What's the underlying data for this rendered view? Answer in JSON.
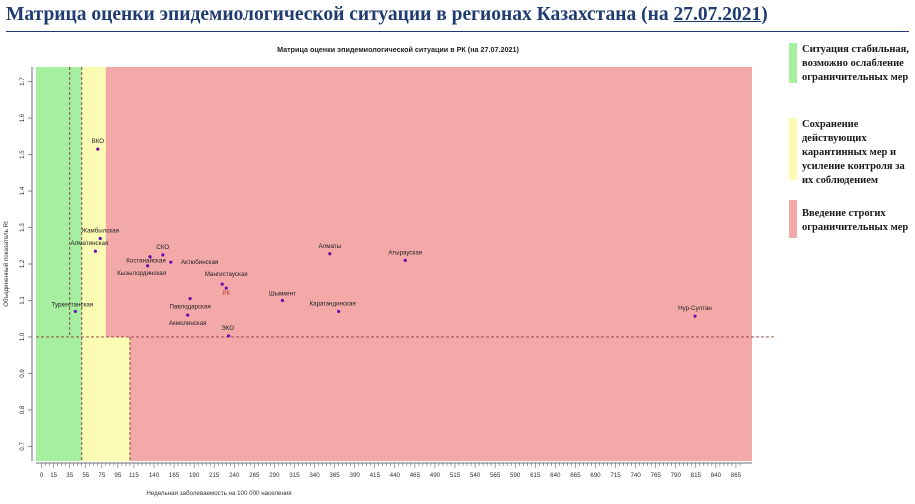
{
  "slide": {
    "title": "Матрица оценки эпидемиологической ситуации в регионах Казахстана (на ",
    "date": "27.07.2021",
    "title_close": ")"
  },
  "legend": [
    {
      "text": "Ситуация стабильная, возможно ослабление ограничительных мер",
      "color": "#a6eea0"
    },
    {
      "text": "Сохранение действующих карантинных мер и усиление контроля за их соблюдением",
      "color": "#fbfbb4"
    },
    {
      "text": "Введение строгих ограничительных мер",
      "color": "#f4a9a9"
    }
  ],
  "chart_data": {
    "type": "scatter",
    "title": "Матрица оценки эпидемиологической ситуации в РК (на 27.07.2021)",
    "xlabel": "Недельная заболеваемость на 100 000 населения",
    "ylabel": "Объединенный показатель Rt",
    "xlim": [
      -7,
      885
    ],
    "ylim": [
      0.66,
      1.74
    ],
    "xticks": [
      0,
      15,
      35,
      55,
      75,
      95,
      115,
      140,
      165,
      190,
      215,
      240,
      265,
      290,
      315,
      340,
      365,
      390,
      415,
      440,
      465,
      490,
      515,
      540,
      565,
      590,
      615,
      640,
      665,
      690,
      715,
      740,
      765,
      790,
      815,
      840,
      865
    ],
    "yticks": [
      0.7,
      0.8,
      0.9,
      1.0,
      1.1,
      1.2,
      1.3,
      1.4,
      1.5,
      1.6,
      1.7
    ],
    "zones": [
      {
        "name": "stable",
        "x0": -7,
        "x1": 50,
        "y0": 1.0,
        "y1": 1.74,
        "color": "#a6eea0"
      },
      {
        "name": "maintain",
        "x0": 50,
        "x1": 80,
        "y0": 1.0,
        "y1": 1.74,
        "color": "#fbfbb4"
      },
      {
        "name": "strict",
        "x0": 80,
        "x1": 885,
        "y0": 1.0,
        "y1": 1.74,
        "color": "#f4a9a9"
      },
      {
        "name": "stable",
        "x0": -7,
        "x1": 50,
        "y0": 0.66,
        "y1": 1.0,
        "color": "#a6eea0"
      },
      {
        "name": "maintain",
        "x0": 50,
        "x1": 110,
        "y0": 0.66,
        "y1": 1.0,
        "color": "#fbfbb4"
      },
      {
        "name": "strict",
        "x0": 110,
        "x1": 885,
        "y0": 0.66,
        "y1": 1.0,
        "color": "#f4a9a9"
      }
    ],
    "thresholds": {
      "y": 1.0,
      "x_upper": [
        35,
        50
      ],
      "x_lower": [
        50,
        110
      ]
    },
    "point_color": "#6a0dad",
    "points": [
      {
        "label": "ВКО",
        "x": 70,
        "y": 1.515
      },
      {
        "label": "Жамбылская",
        "x": 73,
        "y": 1.27
      },
      {
        "label": "Алматинская",
        "x": 67,
        "y": 1.235
      },
      {
        "label": "СКО",
        "x": 151,
        "y": 1.225
      },
      {
        "label": "Костанайская",
        "x": 135,
        "y": 1.22
      },
      {
        "label": "Актюбинская",
        "x": 161,
        "y": 1.205
      },
      {
        "label": "Кызылординская",
        "x": 132,
        "y": 1.195
      },
      {
        "label": "Алматы",
        "x": 359,
        "y": 1.228
      },
      {
        "label": "Атырауская",
        "x": 453,
        "y": 1.21
      },
      {
        "label": "Мангистауская",
        "x": 225,
        "y": 1.145
      },
      {
        "label": "РК",
        "x": 230,
        "y": 1.134
      },
      {
        "label": "Шымкент",
        "x": 300,
        "y": 1.1
      },
      {
        "label": "Павлодарская",
        "x": 185,
        "y": 1.105
      },
      {
        "label": "Карагандинская",
        "x": 370,
        "y": 1.07
      },
      {
        "label": "Туркестанская",
        "x": 42,
        "y": 1.07
      },
      {
        "label": "Акмолинская",
        "x": 182,
        "y": 1.06
      },
      {
        "label": "ЭКО",
        "x": 233,
        "y": 1.003
      },
      {
        "label": "Нур-Султан",
        "x": 814,
        "y": 1.057
      }
    ]
  }
}
